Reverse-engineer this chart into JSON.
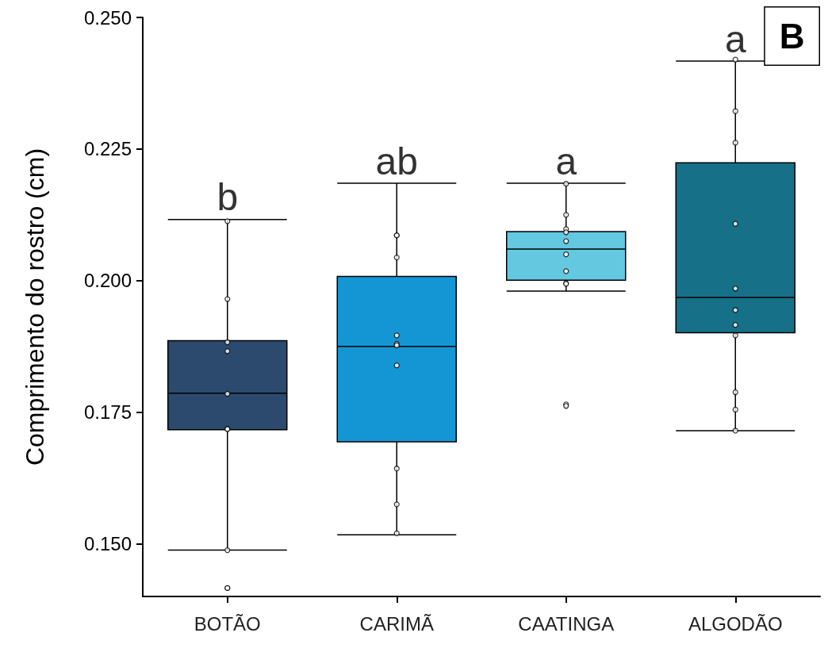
{
  "chart_data": {
    "type": "box",
    "ylabel": "Comprimento do rostro (cm)",
    "categories": [
      "BOTÃO",
      "CARIMÃ",
      "CAATINGA",
      "ALGODÃO"
    ],
    "colors": [
      "#2c4a6e",
      "#1596d4",
      "#63c8e0",
      "#157088"
    ],
    "boxes": [
      {
        "low": 0.1488,
        "q1": 0.1717,
        "median": 0.1786,
        "q3": 0.1886,
        "high": 0.2116
      },
      {
        "low": 0.1517,
        "q1": 0.1694,
        "median": 0.1875,
        "q3": 0.2008,
        "high": 0.2185
      },
      {
        "low": 0.198,
        "q1": 0.2001,
        "median": 0.206,
        "q3": 0.2093,
        "high": 0.2185
      },
      {
        "low": 0.1715,
        "q1": 0.1901,
        "median": 0.1968,
        "q3": 0.2224,
        "high": 0.2417
      }
    ],
    "series": [
      {
        "type": "scatter",
        "color": "#000000",
        "marker": "circle",
        "x": [
          "BOTÃO",
          "BOTÃO",
          "BOTÃO",
          "BOTÃO",
          "BOTÃO",
          "BOTÃO",
          "BOTÃO",
          "BOTÃO",
          "BOTÃO",
          "BOTÃO",
          "CARIMÃ",
          "CARIMÃ",
          "CARIMÃ",
          "CARIMÃ",
          "CARIMÃ",
          "CARIMÃ",
          "CARIMÃ",
          "CARIMÃ",
          "CARIMÃ",
          "CARIMÃ",
          "CAATINGA",
          "CAATINGA",
          "CAATINGA",
          "CAATINGA",
          "CAATINGA",
          "CAATINGA",
          "CAATINGA",
          "CAATINGA",
          "CAATINGA",
          "CAATINGA",
          "CAATINGA",
          "ALGODÃO",
          "ALGODÃO",
          "ALGODÃO",
          "ALGODÃO",
          "ALGODÃO",
          "ALGODÃO",
          "ALGODÃO",
          "ALGODÃO",
          "ALGODÃO",
          "ALGODÃO",
          "ALGODÃO"
        ],
        "values": [
          0.2113,
          0.1965,
          0.1883,
          0.1866,
          0.1785,
          0.1718,
          0.1718,
          0.1488,
          0.1416,
          0.1416,
          0.2086,
          0.2086,
          0.2044,
          0.1896,
          0.188,
          0.1877,
          0.1839,
          0.1643,
          0.1575,
          0.152,
          0.2184,
          0.2125,
          0.2098,
          0.2092,
          0.2075,
          0.205,
          0.2018,
          0.1995,
          0.1994,
          0.1765,
          0.1762,
          0.242,
          0.2322,
          0.2262,
          0.2108,
          0.1985,
          0.1944,
          0.1916,
          0.1896,
          0.1788,
          0.1755,
          0.1715
        ]
      }
    ],
    "annotations": [
      {
        "text": "b",
        "x": "BOTÃO",
        "y": 0.2116
      },
      {
        "text": "ab",
        "x": "CARIMÃ",
        "y": 0.2185
      },
      {
        "text": "a",
        "x": "CAATINGA",
        "y": 0.2185
      },
      {
        "text": "a",
        "x": "ALGODÃO",
        "y": 0.2417
      },
      "B"
    ],
    "ylim": [
      0.14,
      0.25
    ],
    "yticks": [
      {
        "value": 0.15,
        "label": "0.150"
      },
      {
        "value": 0.175,
        "label": "0.175"
      },
      {
        "value": 0.2,
        "label": "0.200"
      },
      {
        "value": 0.225,
        "label": "0.225"
      },
      {
        "value": 0.25,
        "label": "0.250"
      }
    ]
  }
}
